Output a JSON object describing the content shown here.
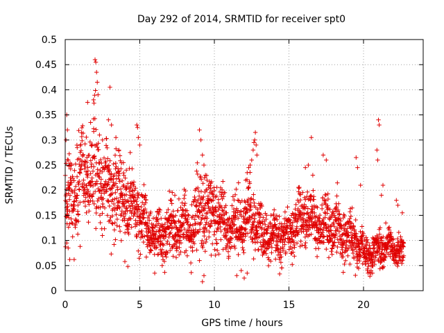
{
  "chart_data": {
    "type": "scatter",
    "title": "Day 292 of 2014, SRMTID for receiver spt0",
    "xlabel": "GPS time / hours",
    "ylabel": "SRMTID / TECUs",
    "xlim": [
      0,
      24
    ],
    "ylim": [
      0,
      0.5
    ],
    "xticks": [
      0,
      5,
      10,
      15,
      20
    ],
    "xtick_labels": [
      "0",
      "5",
      "10",
      "15",
      "20"
    ],
    "yticks": [
      0,
      0.05,
      0.1,
      0.15,
      0.2,
      0.25,
      0.3,
      0.35,
      0.4,
      0.45,
      0.5
    ],
    "ytick_labels": [
      "0",
      "0.05",
      "0.1",
      "0.15",
      "0.2",
      "0.25",
      "0.3",
      "0.35",
      "0.4",
      "0.45",
      "0.5"
    ],
    "grid": true,
    "marker": "plus",
    "color": "#e00000",
    "trend": [
      [
        0.0,
        0.16,
        0.05
      ],
      [
        0.5,
        0.2,
        0.06
      ],
      [
        1.0,
        0.22,
        0.06
      ],
      [
        1.5,
        0.24,
        0.06
      ],
      [
        2.0,
        0.23,
        0.07
      ],
      [
        2.5,
        0.22,
        0.06
      ],
      [
        3.0,
        0.2,
        0.06
      ],
      [
        3.5,
        0.19,
        0.05
      ],
      [
        4.0,
        0.18,
        0.05
      ],
      [
        4.5,
        0.17,
        0.05
      ],
      [
        5.0,
        0.15,
        0.04
      ],
      [
        5.5,
        0.12,
        0.035
      ],
      [
        6.0,
        0.11,
        0.03
      ],
      [
        6.5,
        0.1,
        0.03
      ],
      [
        7.0,
        0.12,
        0.035
      ],
      [
        7.5,
        0.13,
        0.035
      ],
      [
        8.0,
        0.13,
        0.035
      ],
      [
        8.5,
        0.12,
        0.035
      ],
      [
        9.0,
        0.16,
        0.05
      ],
      [
        9.5,
        0.16,
        0.045
      ],
      [
        10.0,
        0.15,
        0.04
      ],
      [
        10.5,
        0.14,
        0.035
      ],
      [
        11.0,
        0.13,
        0.035
      ],
      [
        11.5,
        0.13,
        0.035
      ],
      [
        12.0,
        0.14,
        0.04
      ],
      [
        12.5,
        0.15,
        0.045
      ],
      [
        13.0,
        0.12,
        0.035
      ],
      [
        13.5,
        0.11,
        0.03
      ],
      [
        14.0,
        0.11,
        0.03
      ],
      [
        14.5,
        0.1,
        0.03
      ],
      [
        15.0,
        0.11,
        0.03
      ],
      [
        15.5,
        0.14,
        0.035
      ],
      [
        16.0,
        0.15,
        0.035
      ],
      [
        16.5,
        0.14,
        0.035
      ],
      [
        17.0,
        0.13,
        0.035
      ],
      [
        17.5,
        0.12,
        0.035
      ],
      [
        18.0,
        0.13,
        0.035
      ],
      [
        18.5,
        0.12,
        0.035
      ],
      [
        19.0,
        0.11,
        0.03
      ],
      [
        19.5,
        0.1,
        0.03
      ],
      [
        20.0,
        0.08,
        0.02
      ],
      [
        20.5,
        0.07,
        0.02
      ],
      [
        21.0,
        0.09,
        0.025
      ],
      [
        21.5,
        0.09,
        0.025
      ],
      [
        22.0,
        0.08,
        0.02
      ],
      [
        22.7,
        0.08,
        0.02
      ]
    ],
    "points": [
      [
        0.05,
        0.3
      ],
      [
        0.1,
        0.35
      ],
      [
        0.15,
        0.32
      ],
      [
        0.2,
        0.26
      ],
      [
        0.3,
        0.21
      ],
      [
        0.4,
        0.17
      ],
      [
        1.5,
        0.375
      ],
      [
        1.7,
        0.335
      ],
      [
        1.9,
        0.38
      ],
      [
        2.0,
        0.46
      ],
      [
        2.05,
        0.455
      ],
      [
        2.1,
        0.435
      ],
      [
        2.15,
        0.415
      ],
      [
        2.2,
        0.39
      ],
      [
        2.3,
        0.31
      ],
      [
        2.5,
        0.3
      ],
      [
        2.9,
        0.34
      ],
      [
        3.0,
        0.405
      ],
      [
        3.1,
        0.33
      ],
      [
        3.4,
        0.305
      ],
      [
        3.6,
        0.28
      ],
      [
        3.9,
        0.255
      ],
      [
        4.1,
        0.24
      ],
      [
        4.8,
        0.33
      ],
      [
        4.85,
        0.325
      ],
      [
        4.9,
        0.305
      ],
      [
        5.0,
        0.29
      ],
      [
        0.1,
        0.095
      ],
      [
        0.2,
        0.085
      ],
      [
        0.3,
        0.062
      ],
      [
        0.6,
        0.062
      ],
      [
        1.0,
        0.088
      ],
      [
        4.0,
        0.058
      ],
      [
        4.2,
        0.048
      ],
      [
        6.0,
        0.035
      ],
      [
        6.5,
        0.05
      ],
      [
        9.0,
        0.32
      ],
      [
        9.1,
        0.3
      ],
      [
        9.2,
        0.27
      ],
      [
        9.3,
        0.25
      ],
      [
        9.4,
        0.23
      ],
      [
        9.5,
        0.22
      ],
      [
        9.6,
        0.21
      ],
      [
        9.7,
        0.195
      ],
      [
        9.2,
        0.018
      ],
      [
        9.3,
        0.03
      ],
      [
        9.0,
        0.06
      ],
      [
        11.5,
        0.03
      ],
      [
        11.8,
        0.04
      ],
      [
        12.0,
        0.025
      ],
      [
        12.2,
        0.035
      ],
      [
        12.1,
        0.22
      ],
      [
        12.2,
        0.235
      ],
      [
        12.3,
        0.245
      ],
      [
        12.4,
        0.25
      ],
      [
        12.5,
        0.26
      ],
      [
        12.6,
        0.28
      ],
      [
        12.65,
        0.295
      ],
      [
        12.7,
        0.3
      ],
      [
        12.75,
        0.315
      ],
      [
        12.8,
        0.29
      ],
      [
        12.85,
        0.27
      ],
      [
        16.1,
        0.245
      ],
      [
        16.3,
        0.25
      ],
      [
        16.5,
        0.305
      ],
      [
        16.6,
        0.23
      ],
      [
        17.3,
        0.27
      ],
      [
        17.5,
        0.26
      ],
      [
        19.5,
        0.265
      ],
      [
        19.6,
        0.245
      ],
      [
        19.8,
        0.21
      ],
      [
        20.5,
        0.04
      ],
      [
        20.6,
        0.035
      ],
      [
        20.9,
        0.28
      ],
      [
        20.95,
        0.26
      ],
      [
        21.0,
        0.34
      ],
      [
        21.05,
        0.33
      ],
      [
        21.2,
        0.19
      ],
      [
        21.3,
        0.21
      ],
      [
        22.2,
        0.18
      ],
      [
        22.3,
        0.17
      ],
      [
        22.6,
        0.155
      ]
    ]
  }
}
